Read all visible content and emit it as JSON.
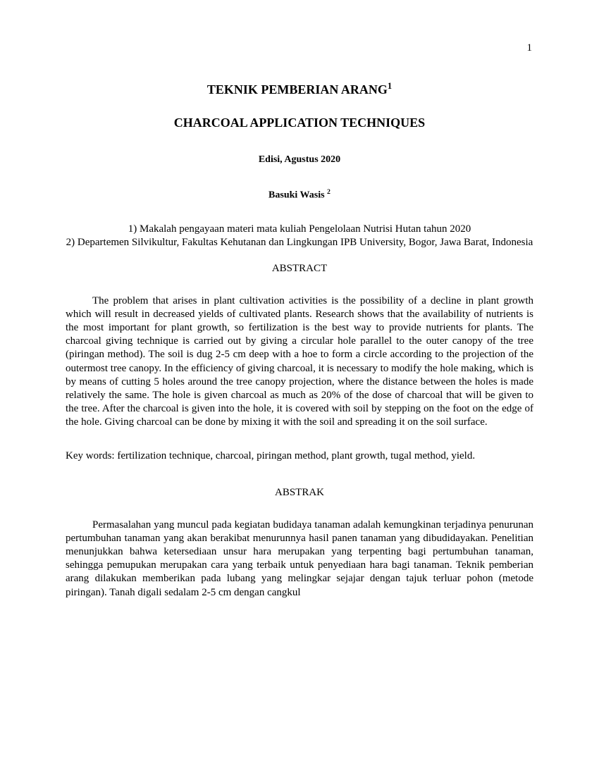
{
  "page_number": "1",
  "title_id": "TEKNIK PEMBERIAN ARANG",
  "title_id_sup": "1",
  "title_en": "CHARCOAL APPLICATION TECHNIQUES",
  "edition": "Edisi,  Agustus 2020",
  "author": "Basuki Wasis",
  "author_sup": "2",
  "affiliation1": "1)  Makalah pengayaan materi mata kuliah Pengelolaan Nutrisi Hutan tahun  2020",
  "affiliation2": "2) Departemen Silvikultur, Fakultas Kehutanan dan Lingkungan IPB University, Bogor, Jawa Barat, Indonesia",
  "abstract_heading": "ABSTRACT",
  "abstract_body": "The problem that arises in plant cultivation activities is the possibility of a decline in plant growth which will result in decreased yields of cultivated plants. Research shows that the availability of nutrients is the most important for plant growth, so fertilization is the best way to provide nutrients for plants. The charcoal giving technique is carried out by giving a circular hole parallel to the outer canopy of the tree (piringan method). The soil is dug 2-5 cm deep with a hoe to form a circle according to the projection of the outermost tree canopy. In the efficiency of giving charcoal, it is necessary to modify the hole making, which is by means of cutting 5 holes around the tree canopy projection, where the distance between the holes is made relatively the same. The hole is given charcoal as much as 20% of the dose of charcoal that will be given to the tree. After the charcoal is given into the hole, it is covered with soil by stepping on the foot on the edge of the hole. Giving charcoal can be done by mixing it with the soil and spreading it on the soil surface.",
  "keywords": "Key words: fertilization technique, charcoal, piringan method, plant growth,  tugal method, yield.",
  "abstrak_heading": "ABSTRAK",
  "abstrak_body": "Permasalahan yang muncul pada kegiatan budidaya tanaman  adalah kemungkinan terjadinya penurunan pertumbuhan tanaman yang akan berakibat menurunnya  hasil panen tanaman yang dibudidayakan.  Penelitian menunjukkan bahwa ketersediaan unsur hara merupakan yang terpenting bagi pertumbuhan tanaman, sehingga pemupukan merupakan cara yang terbaik untuk penyediaan hara bagi tanaman.  Teknik pemberian arang dilakukan memberikan pada lubang yang melingkar sejajar dengan tajuk terluar pohon (metode piringan).  Tanah digali sedalam 2-5 cm dengan cangkul"
}
